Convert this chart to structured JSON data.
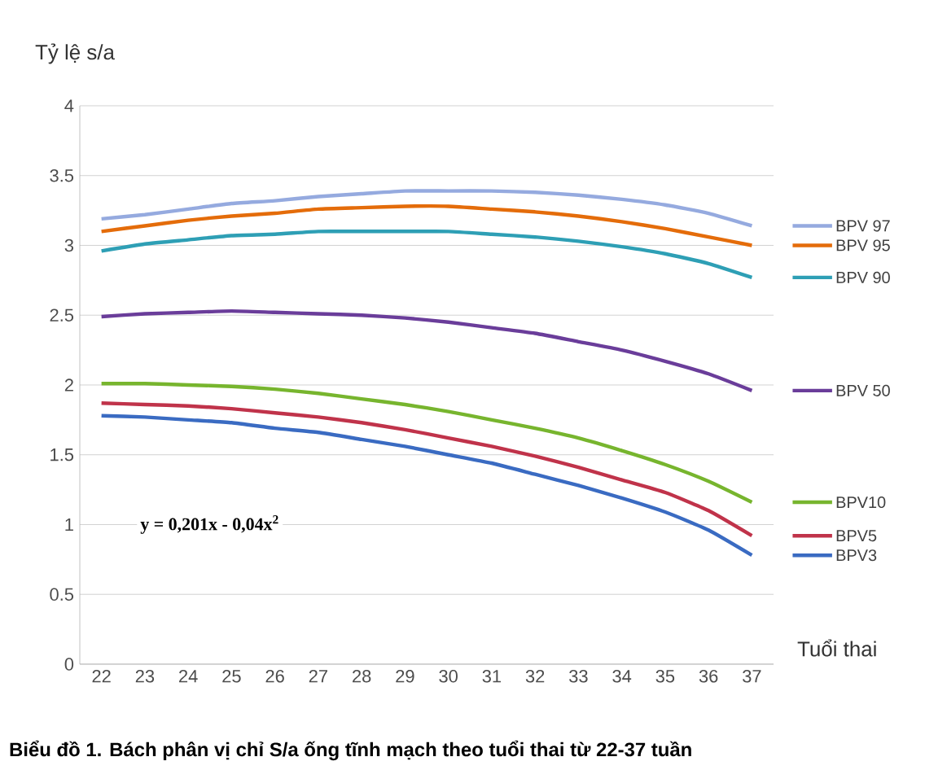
{
  "chart_data": {
    "type": "line",
    "title": "Biểu đồ 1. Bách phân vị chỉ S/a ống tĩnh mạch theo tuổi thai từ 22-37 tuần",
    "xlabel": "Tuổi thai",
    "ylabel": "Tỷ lệ s/a",
    "annotations": [
      "y = 0,201x - 0,04x$^{2}$"
    ],
    "categories": [
      "22",
      "23",
      "24",
      "25",
      "26",
      "27",
      "28",
      "29",
      "30",
      "31",
      "32",
      "33",
      "34",
      "35",
      "36",
      "37"
    ],
    "ylim": [
      0,
      4
    ],
    "yticks": [
      0,
      0.5,
      1,
      1.5,
      2,
      2.5,
      3,
      3.5,
      4
    ],
    "grid": "y",
    "line_style": "solid",
    "legend": "right",
    "series": [
      {
        "name": "BPV 97",
        "color": "#95aadf",
        "values": [
          3.19,
          3.22,
          3.26,
          3.3,
          3.32,
          3.35,
          3.37,
          3.39,
          3.39,
          3.39,
          3.38,
          3.36,
          3.33,
          3.29,
          3.23,
          3.14
        ]
      },
      {
        "name": "BPV 95",
        "color": "#e46c0a",
        "values": [
          3.1,
          3.14,
          3.18,
          3.21,
          3.23,
          3.26,
          3.27,
          3.28,
          3.28,
          3.26,
          3.24,
          3.21,
          3.17,
          3.12,
          3.06,
          3.0
        ]
      },
      {
        "name": "BPV 90",
        "color": "#2e9fb5",
        "values": [
          2.96,
          3.01,
          3.04,
          3.07,
          3.08,
          3.1,
          3.1,
          3.1,
          3.1,
          3.08,
          3.06,
          3.03,
          2.99,
          2.94,
          2.87,
          2.77
        ]
      },
      {
        "name": "BPV 50",
        "color": "#6a3d9a",
        "values": [
          2.49,
          2.51,
          2.52,
          2.53,
          2.52,
          2.51,
          2.5,
          2.48,
          2.45,
          2.41,
          2.37,
          2.31,
          2.25,
          2.17,
          2.08,
          1.96
        ]
      },
      {
        "name": "BPV10",
        "color": "#77b52e",
        "values": [
          2.01,
          2.01,
          2.0,
          1.99,
          1.97,
          1.94,
          1.9,
          1.86,
          1.81,
          1.75,
          1.69,
          1.62,
          1.53,
          1.43,
          1.31,
          1.16
        ]
      },
      {
        "name": "BPV5",
        "color": "#c0334a",
        "values": [
          1.87,
          1.86,
          1.85,
          1.83,
          1.8,
          1.77,
          1.73,
          1.68,
          1.62,
          1.56,
          1.49,
          1.41,
          1.32,
          1.23,
          1.1,
          0.92
        ]
      },
      {
        "name": "BPV3",
        "color": "#3a6bc2",
        "values": [
          1.78,
          1.77,
          1.75,
          1.73,
          1.69,
          1.66,
          1.61,
          1.56,
          1.5,
          1.44,
          1.36,
          1.28,
          1.19,
          1.09,
          0.96,
          0.78
        ]
      }
    ]
  }
}
